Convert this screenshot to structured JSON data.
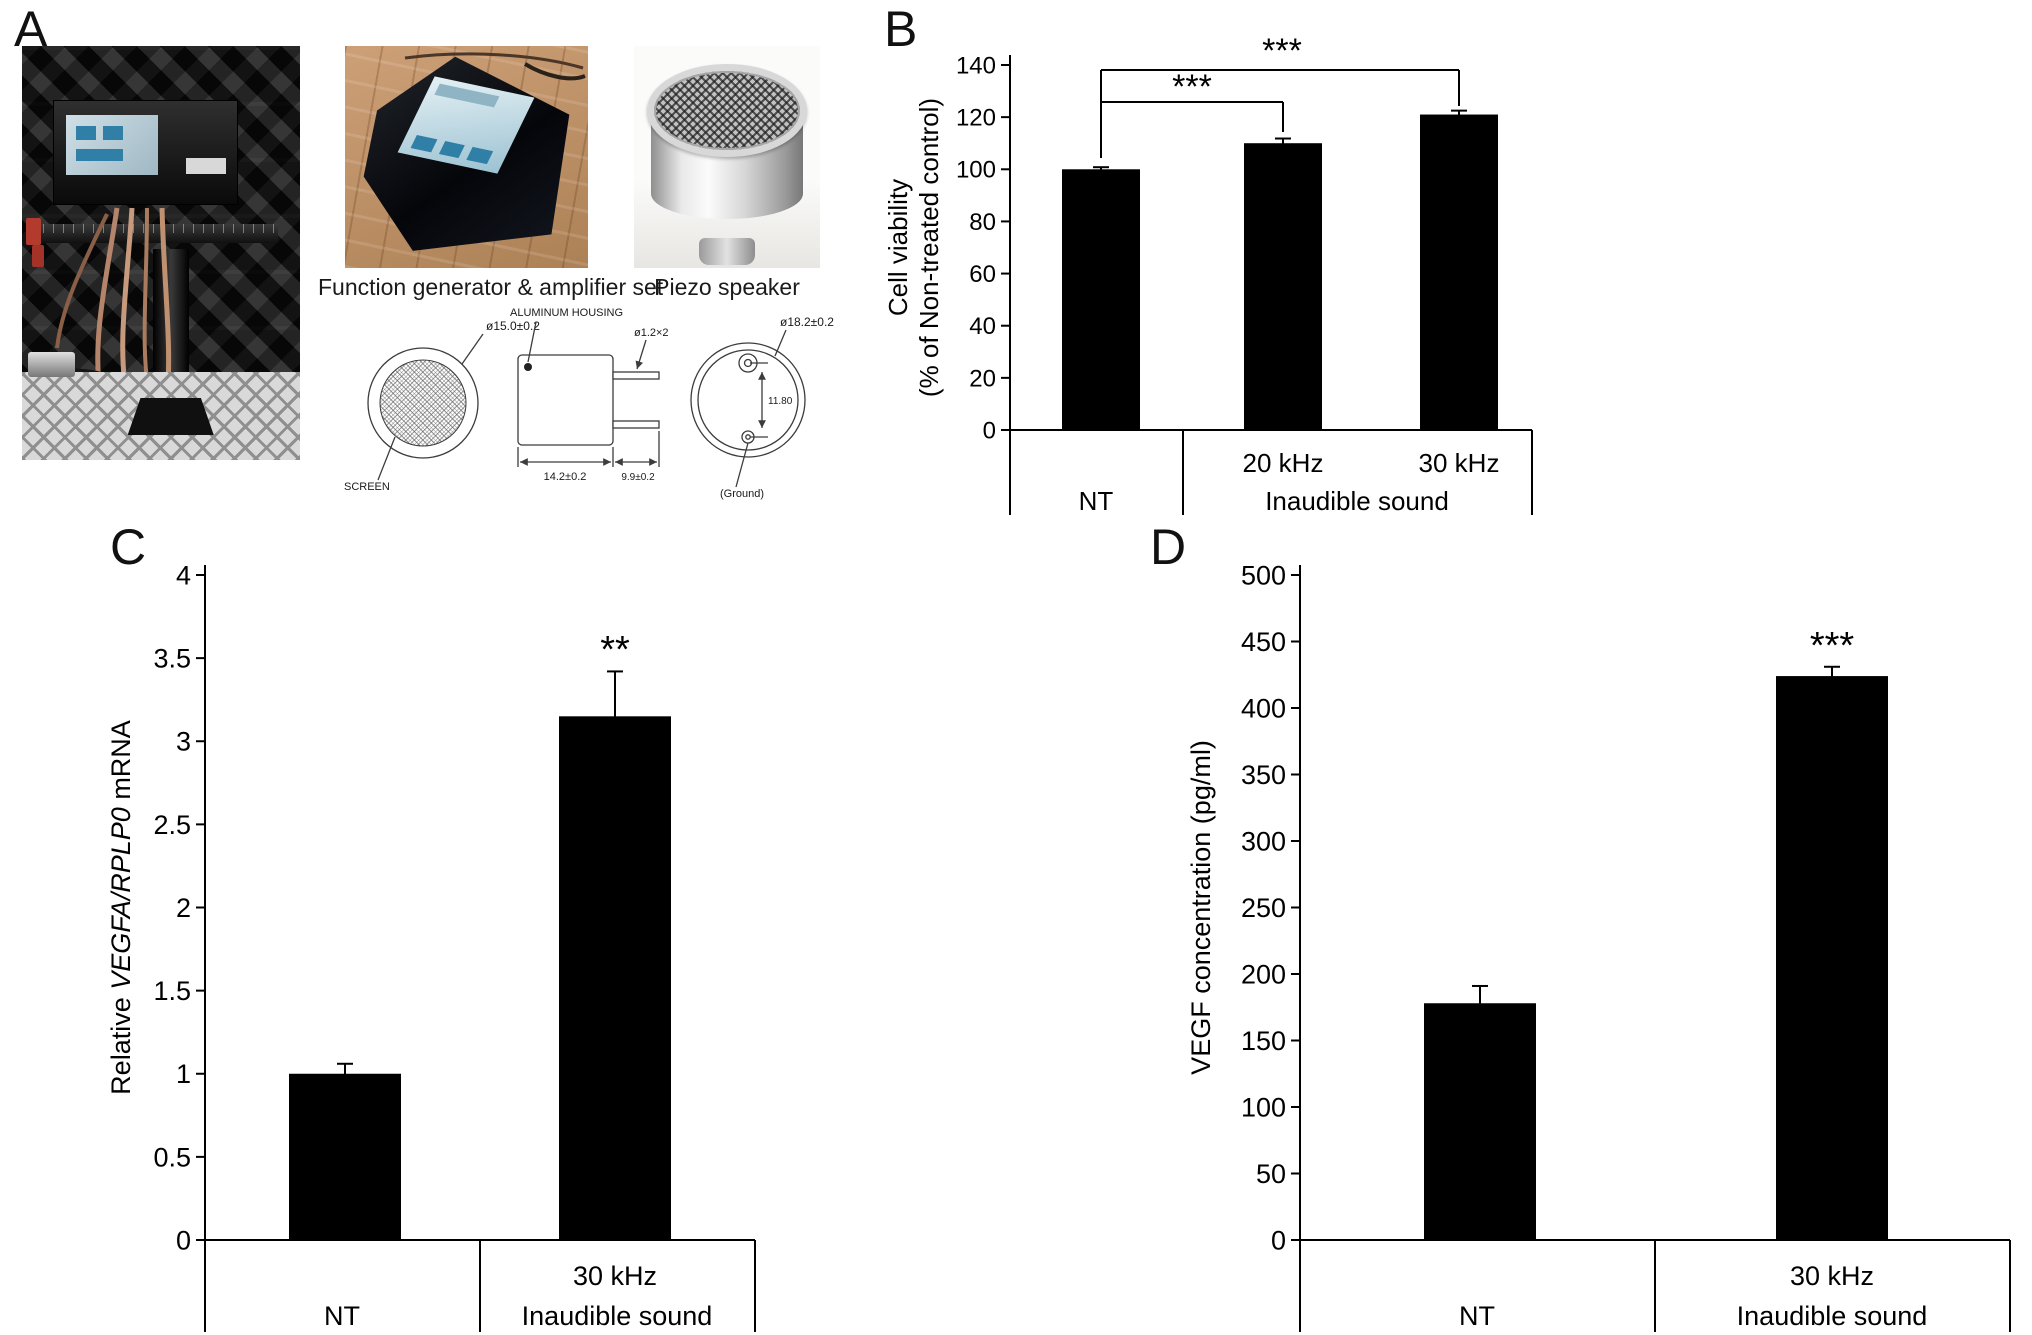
{
  "figure": {
    "panels": {
      "A": {
        "label": "A",
        "captions": {
          "generator": "Function generator & amplifier set",
          "speaker": "Piezo speaker"
        },
        "drawing_labels": {
          "front_diameter": "ø15.0±0.2",
          "screen": "SCREEN",
          "housing": "ALUMINUM HOUSING",
          "pin_diameter": "ø1.2×2",
          "housing_width": "14.2±0.2",
          "pin_length": "9.9±0.2",
          "rear_diameter": "ø18.2±0.2",
          "pin_spacing": "11.80",
          "ground": "(Ground)"
        }
      },
      "B": {
        "label": "B"
      },
      "C": {
        "label": "C"
      },
      "D": {
        "label": "D"
      }
    }
  },
  "chart_data": [
    {
      "id": "B",
      "type": "bar",
      "categories": [
        "NT",
        "20 kHz",
        "30 kHz"
      ],
      "values": [
        100,
        110,
        121
      ],
      "errors": [
        0.8,
        1.8,
        1.5
      ],
      "ylabel_lines": [
        "Cell viability",
        "(% of Non-treated control)"
      ],
      "ylim": [
        0,
        140
      ],
      "ytick_step": 20,
      "bar_color": "#000000",
      "x_axis_rows": {
        "row1": [
          "",
          "20 kHz",
          "30 kHz"
        ],
        "row2": [
          "NT",
          "Inaudible sound"
        ]
      },
      "significance": [
        {
          "from": "NT",
          "to": "20 kHz",
          "label": "***"
        },
        {
          "from": "NT",
          "to": "30 kHz",
          "label": "***"
        }
      ]
    },
    {
      "id": "C",
      "type": "bar",
      "categories": [
        "NT",
        "30 kHz"
      ],
      "values": [
        1.0,
        3.15
      ],
      "errors": [
        0.06,
        0.27
      ],
      "ylabel_parts": [
        {
          "text": "Relative ",
          "italic": false
        },
        {
          "text": "VEGFA/RPLP0",
          "italic": true
        },
        {
          "text": " mRNA",
          "italic": false
        }
      ],
      "ylim": [
        0,
        4
      ],
      "ytick_step": 0.5,
      "bar_color": "#000000",
      "x_axis_rows": {
        "row1": [
          "",
          "30 kHz"
        ],
        "row2": [
          "NT",
          "Inaudible sound"
        ]
      },
      "significance": [
        {
          "on": "30 kHz",
          "label": "**"
        }
      ]
    },
    {
      "id": "D",
      "type": "bar",
      "categories": [
        "NT",
        "30 kHz"
      ],
      "values": [
        178,
        424
      ],
      "errors": [
        13,
        7
      ],
      "ylabel_lines": [
        "VEGF concentration (pg/ml)"
      ],
      "ylim": [
        0,
        500
      ],
      "ytick_step": 50,
      "bar_color": "#000000",
      "x_axis_rows": {
        "row1": [
          "",
          "30 kHz"
        ],
        "row2": [
          "NT",
          "Inaudible sound"
        ]
      },
      "significance": [
        {
          "on": "30 kHz",
          "label": "***"
        }
      ]
    }
  ]
}
